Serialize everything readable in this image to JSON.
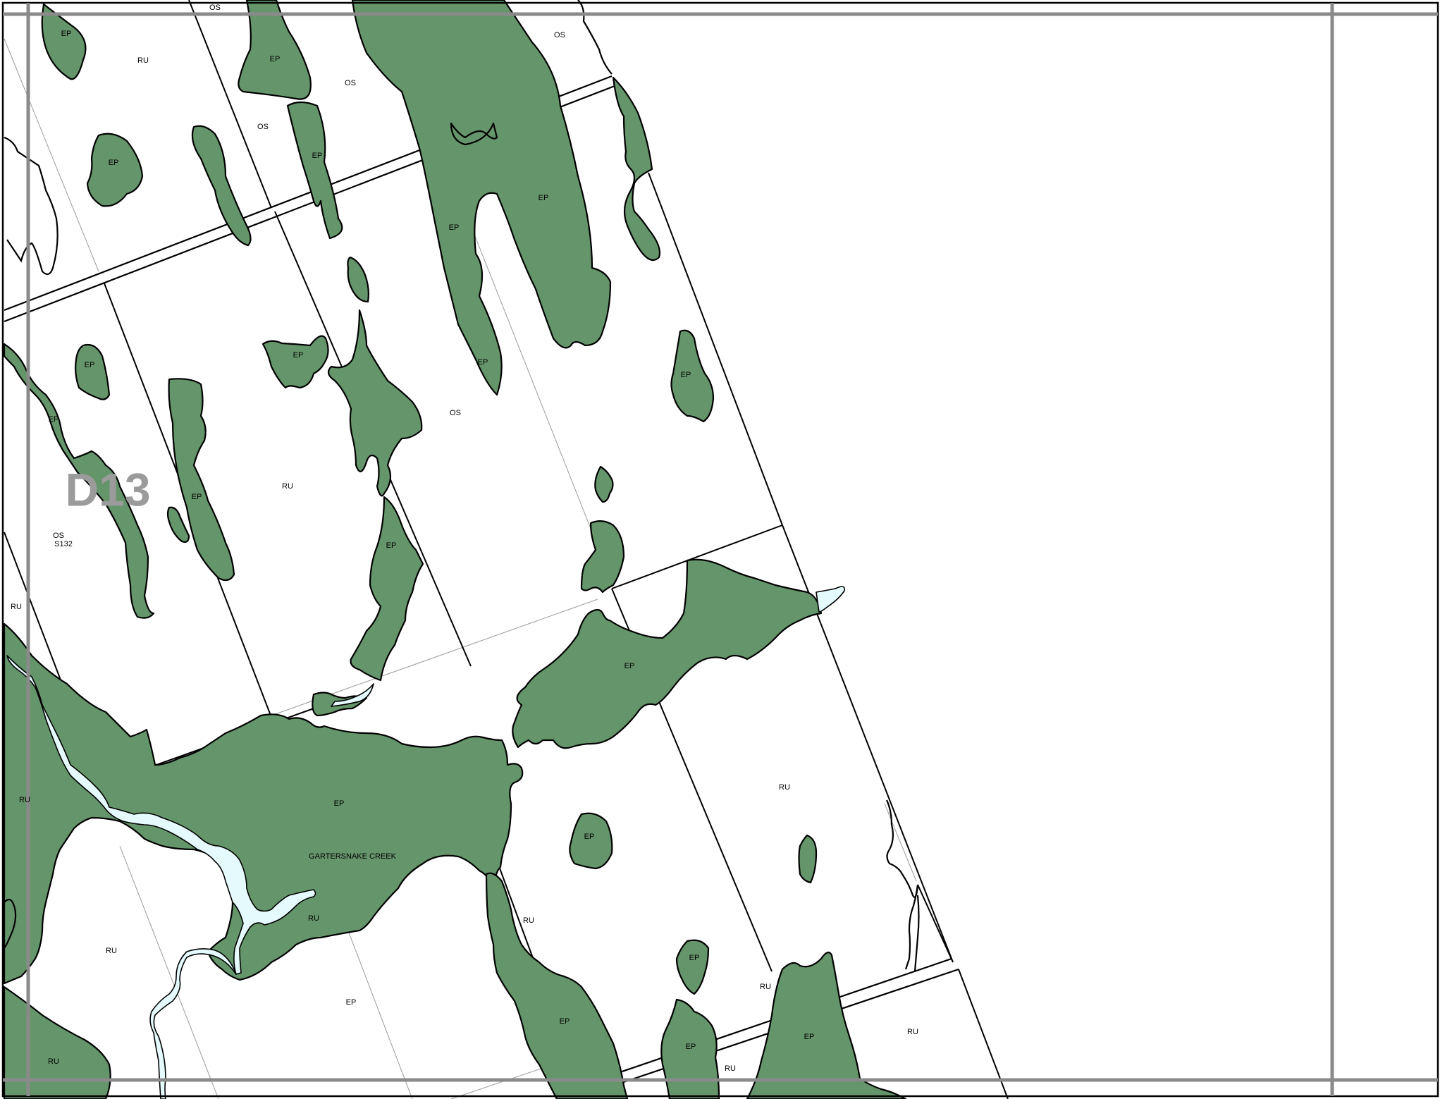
{
  "map": {
    "sheet_id": "D13",
    "colors": {
      "environmental_protection": "#65956a",
      "water": "#e4fafd",
      "frame": "#8a8a8a",
      "boundary": "#000000",
      "background": "#ffffff"
    },
    "creek_name": "GARTERSNAKE CREEK",
    "zone_labels": {
      "os_top": "OS",
      "ep_1": "EP",
      "ru_1": "RU",
      "ep_2": "EP",
      "os_2": "OS",
      "os_3": "OS",
      "os_4": "OS",
      "ep_3": "EP",
      "ep_4": "EP",
      "ep_5": "EP",
      "ep_6": "EP",
      "ep_7": "EP",
      "ep_8": "EP",
      "ep_9": "EP",
      "ep_10": "EP",
      "ep_11": "EP",
      "os_5": "OS",
      "ep_12": "EP",
      "ru_2": "RU",
      "ep_13": "EP",
      "os_6": "OS",
      "s132": "S132",
      "ru_3": "RU",
      "ep_14": "EP",
      "ep_15": "EP",
      "ru_4": "RU",
      "ep_16": "EP",
      "ru_5": "RU",
      "ru_6": "RU",
      "ru_7": "RU",
      "ru_8": "RU",
      "ep_17": "EP",
      "ru_9": "RU",
      "ep_18": "EP",
      "ep_19": "EP",
      "ep_20": "EP",
      "ru_10": "RU",
      "ep_21": "EP",
      "ru_11": "RU",
      "ru_12": "RU"
    }
  }
}
